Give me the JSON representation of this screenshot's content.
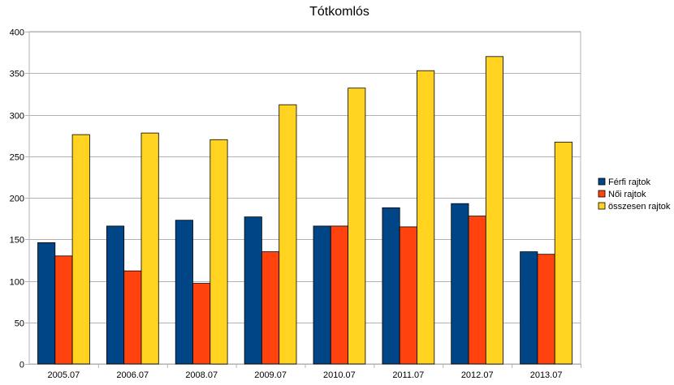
{
  "chart_data": {
    "type": "bar",
    "title": "Tótkomlós",
    "xlabel": "",
    "ylabel": "",
    "categories": [
      "2005.07",
      "2006.07",
      "2008.07",
      "2009.07",
      "2010.07",
      "2011.07",
      "2012.07",
      "2013.07"
    ],
    "series": [
      {
        "name": "Férfi rajtok",
        "color": "#004586",
        "values": [
          146,
          166,
          173,
          177,
          166,
          188,
          193,
          135
        ]
      },
      {
        "name": "Női rajtok",
        "color": "#ff420e",
        "values": [
          130,
          112,
          97,
          135,
          166,
          165,
          178,
          132
        ]
      },
      {
        "name": "összesen rajtok",
        "color": "#ffd320",
        "values": [
          276,
          278,
          270,
          312,
          332,
          353,
          370,
          267
        ]
      }
    ],
    "ylim": [
      0,
      400
    ],
    "yticks": [
      "0",
      "50",
      "100",
      "150",
      "200",
      "250",
      "300",
      "350",
      "400"
    ],
    "grid": true,
    "legend_position": "right"
  }
}
